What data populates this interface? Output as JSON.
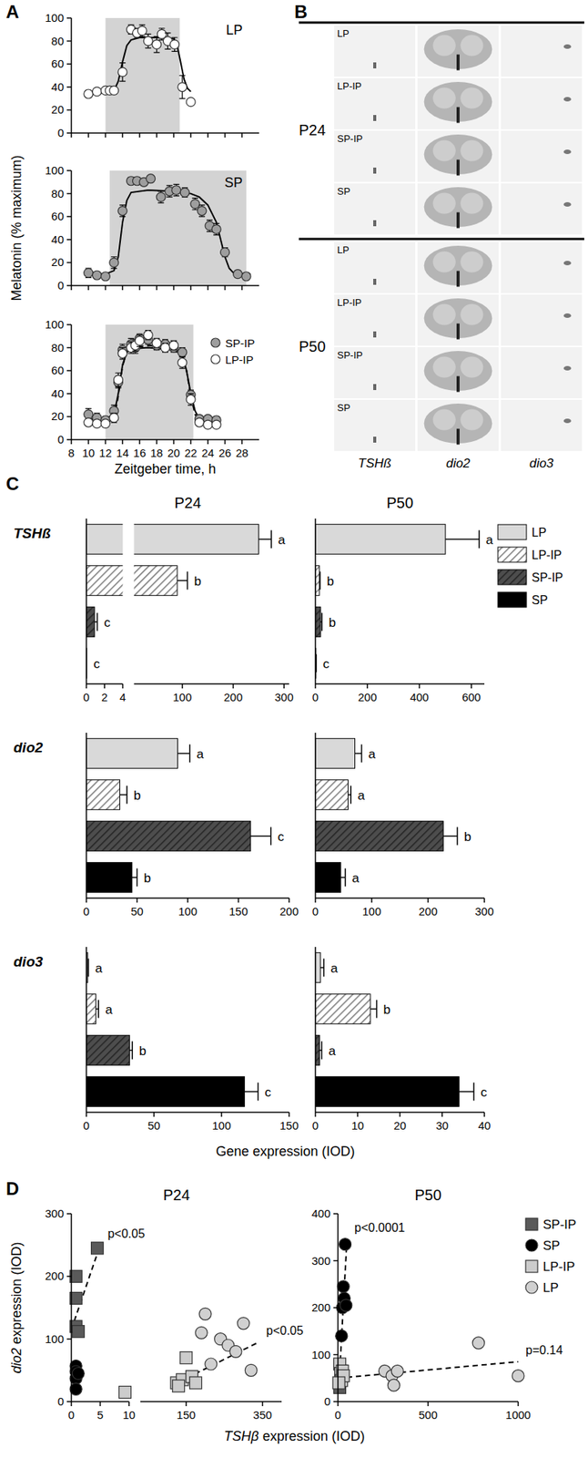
{
  "panel_labels": [
    "A",
    "B",
    "C",
    "D"
  ],
  "chart_data": [
    {
      "type": "scatter",
      "title": "LP",
      "xlim": [
        8,
        30
      ],
      "xticks": [
        8,
        10,
        12,
        14,
        16,
        18,
        20,
        22,
        24,
        26,
        28
      ],
      "ylim": [
        0,
        100
      ],
      "yticks": [
        0,
        20,
        40,
        60,
        80,
        100
      ],
      "tick_labels": "y",
      "shade": [
        12,
        20.7
      ],
      "series": [
        {
          "color": "#ffffff",
          "marker": "circle",
          "x": [
            10,
            11,
            12,
            12.5,
            13,
            14,
            15,
            15.7,
            16.3,
            17,
            18,
            18.6,
            19.3,
            20.1,
            21,
            22
          ],
          "values": [
            34,
            36,
            37,
            37,
            37,
            53,
            90,
            87,
            89,
            80,
            77,
            86,
            80,
            77,
            40,
            27
          ],
          "errors": [
            3,
            2,
            2,
            2,
            3,
            8,
            4,
            4,
            5,
            6,
            7,
            5,
            7,
            6,
            10,
            2
          ]
        },
        {
          "type": "line",
          "color": "#000000",
          "line_style": "solid",
          "x": [
            10,
            12,
            13,
            13.5,
            14,
            14.5,
            15,
            16,
            18,
            20,
            20.4,
            20.8,
            21.2,
            21.6,
            22
          ],
          "values": [
            35,
            35,
            37,
            45,
            62,
            76,
            81,
            83,
            83,
            82,
            76,
            62,
            47,
            39,
            36
          ]
        }
      ]
    },
    {
      "type": "scatter",
      "title": "SP",
      "y_label": "Melatonin (% maximum)",
      "xlim": [
        8,
        30
      ],
      "xticks": [
        8,
        10,
        12,
        14,
        16,
        18,
        20,
        22,
        24,
        26,
        28
      ],
      "ylim": [
        0,
        100
      ],
      "yticks": [
        0,
        20,
        40,
        60,
        80,
        100
      ],
      "tick_labels": "y",
      "shade": [
        12.5,
        28.5
      ],
      "series": [
        {
          "color": "#9e9e9e",
          "marker": "circle",
          "x": [
            10,
            11,
            12,
            13,
            14,
            15,
            15.7,
            16.5,
            17.3,
            18.5,
            19.5,
            20.3,
            21.3,
            22.5,
            23.3,
            24.2,
            25,
            26,
            27.5,
            28.5
          ],
          "values": [
            11,
            9,
            8,
            20,
            65,
            91,
            91,
            90,
            93,
            77,
            82,
            83,
            81,
            71,
            65,
            52,
            49,
            29,
            10,
            8
          ],
          "errors": [
            4,
            3,
            2,
            5,
            5,
            3,
            3,
            3,
            2,
            5,
            5,
            5,
            4,
            5,
            5,
            5,
            5,
            4,
            3,
            3
          ]
        },
        {
          "type": "line",
          "color": "#000000",
          "line_style": "solid",
          "x": [
            10,
            12,
            13,
            13.5,
            14,
            14.5,
            15,
            17,
            20,
            22,
            23,
            24,
            25,
            25.5,
            26,
            26.5,
            27,
            28,
            29
          ],
          "values": [
            10,
            10,
            13,
            25,
            55,
            74,
            81,
            83,
            82,
            80,
            77,
            70,
            55,
            40,
            25,
            15,
            11,
            10,
            10
          ]
        }
      ]
    },
    {
      "type": "scatter",
      "x_label": "Zeitgeber time, h",
      "legend": "top-right",
      "xlim": [
        8,
        30
      ],
      "xticks": [
        8,
        10,
        12,
        14,
        16,
        18,
        20,
        22,
        24,
        26,
        28
      ],
      "ylim": [
        0,
        100
      ],
      "yticks": [
        0,
        20,
        40,
        60,
        80,
        100
      ],
      "shade": [
        12,
        22.3
      ],
      "series": [
        {
          "name": "SP-IP",
          "color": "#9e9e9e",
          "marker": "circle",
          "x": [
            10,
            11,
            12,
            13,
            13.5,
            14,
            15,
            15.5,
            16,
            17,
            18,
            19,
            20,
            21,
            22,
            23,
            24,
            25
          ],
          "values": [
            22,
            19,
            17,
            25,
            50,
            78,
            83,
            80,
            88,
            87,
            82,
            83,
            80,
            76,
            39,
            18,
            18,
            17
          ],
          "errors": [
            5,
            4,
            3,
            5,
            5,
            5,
            5,
            5,
            4,
            4,
            4,
            4,
            4,
            4,
            4,
            3,
            3,
            3
          ]
        },
        {
          "name": "LP-IP",
          "color": "#ffffff",
          "marker": "circle",
          "x": [
            10,
            11,
            12,
            13,
            13.5,
            14,
            15,
            15.5,
            16,
            17,
            18,
            19,
            20,
            21,
            22,
            23,
            24,
            25
          ],
          "values": [
            15,
            14,
            14,
            19,
            52,
            75,
            80,
            82,
            86,
            91,
            84,
            80,
            82,
            67,
            35,
            15,
            13,
            13
          ],
          "errors": [
            3,
            3,
            3,
            4,
            6,
            5,
            5,
            5,
            5,
            4,
            4,
            4,
            4,
            5,
            5,
            3,
            3,
            2
          ]
        },
        {
          "type": "line",
          "color": "#000000",
          "line_style": "solid",
          "x": [
            10,
            12,
            13,
            13.5,
            14,
            14.5,
            15,
            17,
            20,
            21,
            21.5,
            22,
            22.5,
            23,
            24,
            25
          ],
          "values": [
            18,
            18,
            22,
            40,
            65,
            76,
            79,
            80,
            78,
            74,
            60,
            40,
            25,
            18,
            17,
            17
          ]
        },
        {
          "type": "line",
          "color": "#000000",
          "line_style": "dashed",
          "x": [
            10,
            12,
            13,
            13.5,
            14,
            14.5,
            15,
            17,
            20,
            21,
            21.5,
            22,
            22.5,
            23,
            24,
            25
          ],
          "values": [
            14,
            14,
            18,
            38,
            64,
            76,
            80,
            82,
            80,
            75,
            60,
            38,
            22,
            15,
            14,
            14
          ]
        }
      ]
    },
    {
      "type": "bar",
      "orientation": "horizontal",
      "title": "P24",
      "y_label": "TSHß",
      "tick_labels": "x",
      "values": [
        250,
        90,
        0.9,
        0.05
      ],
      "errors": [
        25,
        20,
        0.3,
        0
      ],
      "letters": [
        "a",
        "b",
        "c",
        "c"
      ],
      "colors": [
        "#d9d9d9",
        "#ffffff",
        "#4d4d4d",
        "#000000"
      ],
      "hatch": [
        false,
        true,
        true,
        false
      ],
      "segments": [
        {
          "xlim": [
            0,
            4
          ],
          "xticks": [
            0,
            2,
            4
          ]
        },
        {
          "xlim": [
            5,
            310
          ],
          "xticks": [
            100,
            200,
            300
          ]
        }
      ]
    },
    {
      "type": "bar",
      "orientation": "horizontal",
      "title": "P50",
      "legend": "right",
      "tick_labels": "x",
      "categories": [
        "LP",
        "LP-IP",
        "SP-IP",
        "SP"
      ],
      "values": [
        500,
        15,
        20,
        2
      ],
      "errors": [
        130,
        3,
        5,
        1
      ],
      "letters": [
        "a",
        "b",
        "b",
        "c"
      ],
      "colors": [
        "#d9d9d9",
        "#ffffff",
        "#4d4d4d",
        "#000000"
      ],
      "hatch": [
        false,
        true,
        true,
        false
      ],
      "xlim": [
        0,
        650
      ],
      "xticks": [
        0,
        200,
        400,
        600
      ]
    },
    {
      "type": "bar",
      "orientation": "horizontal",
      "y_label": "dio2",
      "tick_labels": "x",
      "values": [
        90,
        33,
        162,
        45
      ],
      "errors": [
        12,
        7,
        20,
        5
      ],
      "letters": [
        "a",
        "b",
        "c",
        "b"
      ],
      "colors": [
        "#d9d9d9",
        "#ffffff",
        "#4d4d4d",
        "#000000"
      ],
      "hatch": [
        false,
        true,
        true,
        false
      ],
      "xlim": [
        0,
        200
      ],
      "xticks": [
        0,
        50,
        100,
        150,
        200
      ]
    },
    {
      "type": "bar",
      "orientation": "horizontal",
      "tick_labels": "x",
      "values": [
        70,
        58,
        227,
        45
      ],
      "errors": [
        12,
        5,
        25,
        8
      ],
      "letters": [
        "a",
        "a",
        "b",
        "a"
      ],
      "colors": [
        "#d9d9d9",
        "#ffffff",
        "#4d4d4d",
        "#000000"
      ],
      "hatch": [
        false,
        true,
        true,
        false
      ],
      "xlim": [
        0,
        300
      ],
      "xticks": [
        0,
        100,
        200,
        300
      ]
    },
    {
      "type": "bar",
      "orientation": "horizontal",
      "y_label": "dio3",
      "x_label": "Gene expression (IOD)",
      "tick_labels": "x",
      "values": [
        1,
        7,
        32,
        117
      ],
      "errors": [
        0.5,
        2,
        2,
        10
      ],
      "letters": [
        "a",
        "a",
        "b",
        "c"
      ],
      "colors": [
        "#d9d9d9",
        "#ffffff",
        "#4d4d4d",
        "#000000"
      ],
      "hatch": [
        false,
        true,
        true,
        false
      ],
      "xlim": [
        0,
        150
      ],
      "xticks": [
        0,
        50,
        100,
        150
      ]
    },
    {
      "type": "bar",
      "orientation": "horizontal",
      "tick_labels": "x",
      "values": [
        1.2,
        13,
        1,
        34
      ],
      "errors": [
        0.8,
        1.5,
        0.5,
        3.5
      ],
      "letters": [
        "a",
        "b",
        "a",
        "c"
      ],
      "colors": [
        "#d9d9d9",
        "#ffffff",
        "#4d4d4d",
        "#000000"
      ],
      "hatch": [
        false,
        true,
        true,
        false
      ],
      "xlim": [
        0,
        40
      ],
      "xticks": [
        0,
        10,
        20,
        30,
        40
      ]
    },
    {
      "type": "scatter",
      "title": "P24",
      "y_label": "dio2 expression (IOD)",
      "x_label": "TSHβ expression (IOD)",
      "segments": [
        {
          "xlim": [
            0,
            10
          ],
          "xticks": [
            0,
            5,
            10
          ]
        },
        {
          "xlim": [
            30,
            400
          ],
          "xticks": [
            150,
            350
          ]
        }
      ],
      "ylim": [
        0,
        300
      ],
      "yticks": [
        0,
        100,
        200,
        300
      ],
      "series": [
        {
          "color": "#5a5a5a",
          "marker": "square",
          "x": [
            0.8,
            0.8,
            0.8,
            1.2,
            4.5
          ],
          "values": [
            200,
            165,
            120,
            112,
            245
          ]
        },
        {
          "color": "#000000",
          "marker": "circle",
          "x": [
            0.8,
            0.8,
            0.8,
            1.2,
            0.8
          ],
          "values": [
            57,
            48,
            37,
            45,
            20
          ]
        },
        {
          "color": "#cccccc",
          "marker": "square",
          "x": [
            9.3,
            125,
            140,
            150,
            165,
            175,
            130
          ],
          "values": [
            15,
            30,
            35,
            70,
            40,
            30,
            25
          ]
        },
        {
          "color": "#d0d0d0",
          "marker": "circle",
          "x": [
            190,
            200,
            215,
            240,
            260,
            280,
            300,
            320
          ],
          "values": [
            110,
            140,
            60,
            100,
            90,
            80,
            125,
            50
          ]
        },
        {
          "type": "line",
          "color": "#000000",
          "line_style": "dashed",
          "x": [
            0,
            5
          ],
          "values": [
            115,
            250
          ],
          "annotation": "p<0.05"
        },
        {
          "type": "line",
          "color": "#000000",
          "line_style": "dashed",
          "x": [
            110,
            340
          ],
          "values": [
            25,
            95
          ],
          "annotation": "p<0.05"
        }
      ]
    },
    {
      "type": "scatter",
      "title": "P50",
      "legend": "right",
      "xlim": [
        0,
        1000
      ],
      "xticks": [
        0,
        500,
        1000
      ],
      "ylim": [
        0,
        400
      ],
      "yticks": [
        0,
        100,
        200,
        300,
        400
      ],
      "series": [
        {
          "name": "SP-IP",
          "color": "#5a5a5a",
          "marker": "square",
          "x": [
            10,
            15,
            20
          ],
          "values": [
            30,
            55,
            65
          ]
        },
        {
          "name": "SP",
          "color": "#000000",
          "marker": "circle",
          "x": [
            40,
            30,
            35,
            25,
            20,
            45
          ],
          "values": [
            335,
            245,
            220,
            200,
            140,
            205
          ]
        },
        {
          "name": "LP-IP",
          "color": "#cccccc",
          "marker": "square",
          "x": [
            10,
            15,
            20,
            25,
            30,
            5
          ],
          "values": [
            80,
            60,
            45,
            65,
            55,
            40
          ]
        },
        {
          "name": "LP",
          "color": "#d0d0d0",
          "marker": "circle",
          "x": [
            780,
            260,
            300,
            330,
            1000,
            310
          ],
          "values": [
            125,
            65,
            55,
            65,
            55,
            35
          ]
        },
        {
          "type": "line",
          "color": "#000000",
          "line_style": "dashed",
          "x": [
            5,
            50
          ],
          "values": [
            30,
            345
          ],
          "annotation": "p<0.0001"
        },
        {
          "type": "line",
          "color": "#000000",
          "line_style": "dashed",
          "x": [
            0,
            1000
          ],
          "values": [
            50,
            85
          ],
          "annotation": "p=0.14"
        }
      ]
    }
  ],
  "panel_b": {
    "columns": [
      "TSHß",
      "dio2",
      "dio3"
    ],
    "groups": [
      {
        "label": "P24",
        "rows": [
          "LP",
          "LP-IP",
          "SP-IP",
          "SP"
        ]
      },
      {
        "label": "P50",
        "rows": [
          "LP",
          "LP-IP",
          "SP-IP",
          "SP"
        ]
      }
    ]
  }
}
